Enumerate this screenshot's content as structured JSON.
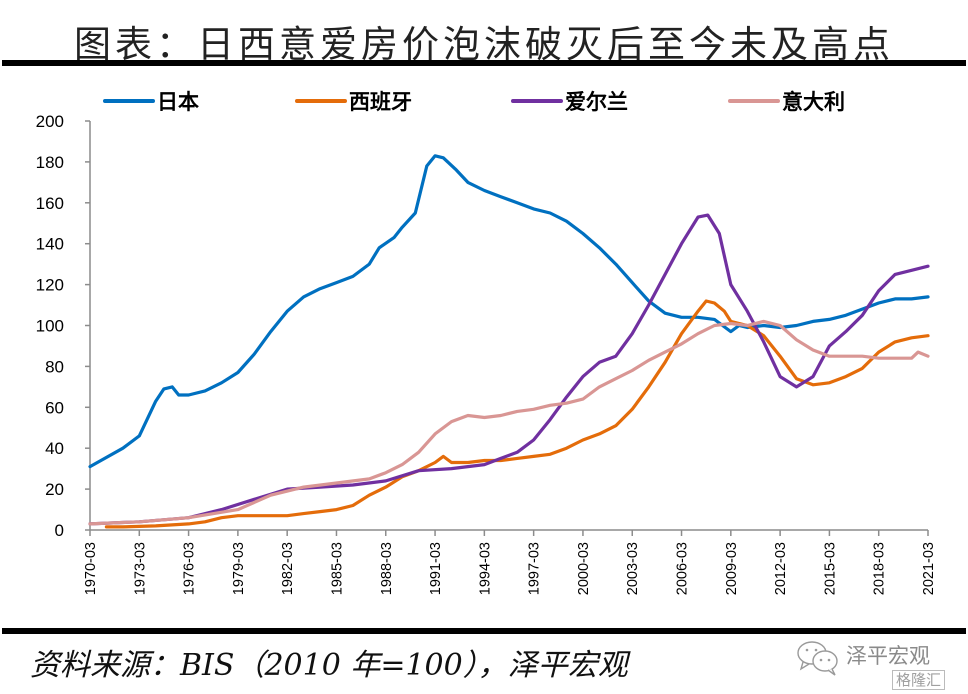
{
  "title": "图表：日西意爱房价泡沫破灭后至今未及高点",
  "source": "资料来源：BIS（2010 年=100），泽平宏观",
  "watermark": {
    "name": "泽平宏观",
    "brand": "格隆汇",
    "icon": "wechat-icon"
  },
  "chart_data": {
    "type": "line",
    "title": "图表：日西意爱房价泡沫破灭后至今未及高点",
    "xlabel": "",
    "ylabel": "",
    "ylim": [
      0,
      200
    ],
    "yticks": [
      "0",
      "20",
      "40",
      "60",
      "80",
      "100",
      "120",
      "140",
      "160",
      "180",
      "200"
    ],
    "xlim": [
      1970.0,
      2021.0
    ],
    "xticks": [
      "1970-03",
      "1973-03",
      "1976-03",
      "1979-03",
      "1982-03",
      "1985-03",
      "1988-03",
      "1991-03",
      "1994-03",
      "1997-03",
      "2000-03",
      "2003-03",
      "2006-03",
      "2009-03",
      "2012-03",
      "2015-03",
      "2018-03",
      "2021-03"
    ],
    "grid": false,
    "legend_position": "top",
    "series": [
      {
        "name": "日本",
        "color": "#0070C0",
        "x": [
          1970,
          1972,
          1973,
          1974,
          1974.5,
          1975,
          1975.4,
          1976,
          1977,
          1978,
          1979,
          1980,
          1981,
          1982,
          1983,
          1984,
          1985,
          1986,
          1987,
          1987.6,
          1988.5,
          1989,
          1989.8,
          1990.5,
          1991,
          1991.5,
          1992.3,
          1993,
          1994,
          1995,
          1996,
          1997,
          1998,
          1999,
          2000,
          2001,
          2002,
          2003,
          2004,
          2005,
          2006,
          2007,
          2008,
          2009,
          2009.5,
          2010,
          2011,
          2012,
          2013,
          2014,
          2015,
          2016,
          2017,
          2018,
          2019,
          2020,
          2021
        ],
        "values": [
          31,
          40,
          46,
          63,
          69,
          70,
          66,
          66,
          68,
          72,
          77,
          86,
          97,
          107,
          114,
          118,
          121,
          124,
          130,
          138,
          143,
          148,
          155,
          178,
          183,
          182,
          176,
          170,
          166,
          163,
          160,
          157,
          155,
          151,
          145,
          138,
          130,
          121,
          112,
          106,
          104,
          104,
          103,
          97,
          100,
          99,
          100,
          99,
          100,
          102,
          103,
          105,
          108,
          111,
          113,
          113,
          114
        ]
      },
      {
        "name": "西班牙",
        "color": "#E46C0A",
        "x": [
          1971,
          1972,
          1974,
          1976,
          1977,
          1978,
          1979,
          1980,
          1981,
          1982,
          1983,
          1984,
          1985,
          1986,
          1987,
          1988,
          1989,
          1990,
          1991,
          1991.5,
          1992,
          1993,
          1994,
          1995,
          1996,
          1997,
          1998,
          1999,
          2000,
          2001,
          2002,
          2003,
          2004,
          2005,
          2006,
          2007,
          2007.5,
          2008,
          2008.6,
          2009,
          2010,
          2011,
          2012,
          2013,
          2014,
          2015,
          2016,
          2017,
          2018,
          2019,
          2020,
          2021
        ],
        "values": [
          1.5,
          1.5,
          2,
          3,
          4,
          6,
          7,
          7,
          7,
          7,
          8,
          9,
          10,
          12,
          17,
          21,
          26,
          29,
          33,
          36,
          33,
          33,
          34,
          34,
          35,
          36,
          37,
          40,
          44,
          47,
          51,
          59,
          70,
          82,
          96,
          107,
          112,
          111,
          107,
          102,
          100,
          95,
          85,
          74,
          71,
          72,
          75,
          79,
          87,
          92,
          94,
          95
        ]
      },
      {
        "name": "爱尔兰",
        "color": "#7030A0",
        "x": [
          1970,
          1973,
          1976,
          1978,
          1980,
          1982,
          1984,
          1986,
          1988,
          1990,
          1992,
          1994,
          1995,
          1996,
          1997,
          1998,
          1999,
          2000,
          2001,
          2002,
          2003,
          2004,
          2005,
          2006,
          2007,
          2007.6,
          2008.3,
          2009,
          2010,
          2011,
          2012,
          2013,
          2014,
          2015,
          2016,
          2017,
          2018,
          2019,
          2020,
          2021
        ],
        "values": [
          3,
          4,
          6,
          10,
          15,
          20,
          21,
          22,
          24,
          29,
          30,
          32,
          35,
          38,
          44,
          54,
          65,
          75,
          82,
          85,
          96,
          110,
          125,
          140,
          153,
          154,
          145,
          120,
          107,
          92,
          75,
          70,
          75,
          90,
          97,
          105,
          117,
          125,
          127,
          129
        ]
      },
      {
        "name": "意大利",
        "color": "#D99694",
        "x": [
          1970,
          1973,
          1976,
          1979,
          1981,
          1983,
          1985,
          1987,
          1988,
          1989,
          1990,
          1991,
          1992,
          1993,
          1994,
          1995,
          1996,
          1997,
          1998,
          1999,
          2000,
          2001,
          2002,
          2003,
          2004,
          2005,
          2006,
          2007,
          2008,
          2009,
          2010,
          2011,
          2012,
          2013,
          2014,
          2015,
          2016,
          2017,
          2018,
          2019,
          2020,
          2020.4,
          2021
        ],
        "values": [
          3,
          4,
          6,
          10,
          17,
          21,
          23,
          25,
          28,
          32,
          38,
          47,
          53,
          56,
          55,
          56,
          58,
          59,
          61,
          62,
          64,
          70,
          74,
          78,
          83,
          87,
          91,
          96,
          100,
          101,
          100,
          102,
          100,
          93,
          88,
          85,
          85,
          85,
          84,
          84,
          84,
          87,
          85
        ]
      }
    ]
  }
}
